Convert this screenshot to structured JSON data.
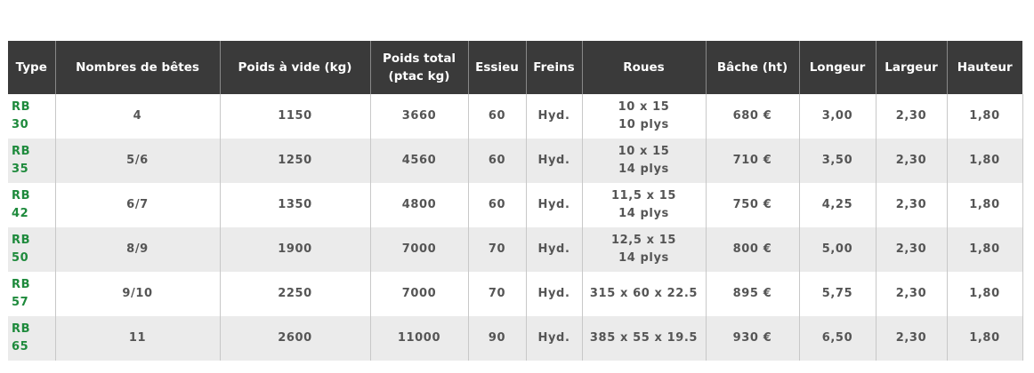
{
  "table": {
    "headers": [
      "Type",
      "Nombres de bêtes",
      "Poids à vide (kg)",
      "Poids total (ptac kg)",
      "Essieu",
      "Freins",
      "Roues",
      "Bâche (ht)",
      "Longeur",
      "Largeur",
      "Hauteur"
    ],
    "rows": [
      [
        "RB 30",
        "4",
        "1150",
        "3660",
        "60",
        "Hyd.",
        "10 x 15\n10 plys",
        "680 €",
        "3,00",
        "2,30",
        "1,80"
      ],
      [
        "RB 35",
        "5/6",
        "1250",
        "4560",
        "60",
        "Hyd.",
        "10 x 15\n14 plys",
        "710 €",
        "3,50",
        "2,30",
        "1,80"
      ],
      [
        "RB 42",
        "6/7",
        "1350",
        "4800",
        "60",
        "Hyd.",
        "11,5 x 15\n14 plys",
        "750 €",
        "4,25",
        "2,30",
        "1,80"
      ],
      [
        "RB 50",
        "8/9",
        "1900",
        "7000",
        "70",
        "Hyd.",
        "12,5 x 15\n14 plys",
        "800 €",
        "5,00",
        "2,30",
        "1,80"
      ],
      [
        "RB 57",
        "9/10",
        "2250",
        "7000",
        "70",
        "Hyd.",
        "315 x 60 x 22.5",
        "895 €",
        "5,75",
        "2,30",
        "1,80"
      ],
      [
        "RB 65",
        "11",
        "2600",
        "11000",
        "90",
        "Hyd.",
        "385 x 55 x 19.5",
        "930 €",
        "6,50",
        "2,30",
        "1,80"
      ]
    ]
  },
  "colors": {
    "header_bg": "#3a3a3a",
    "type_text": "#1e8a3c",
    "alt_row": "#ebebeb",
    "body_text": "#555555"
  }
}
